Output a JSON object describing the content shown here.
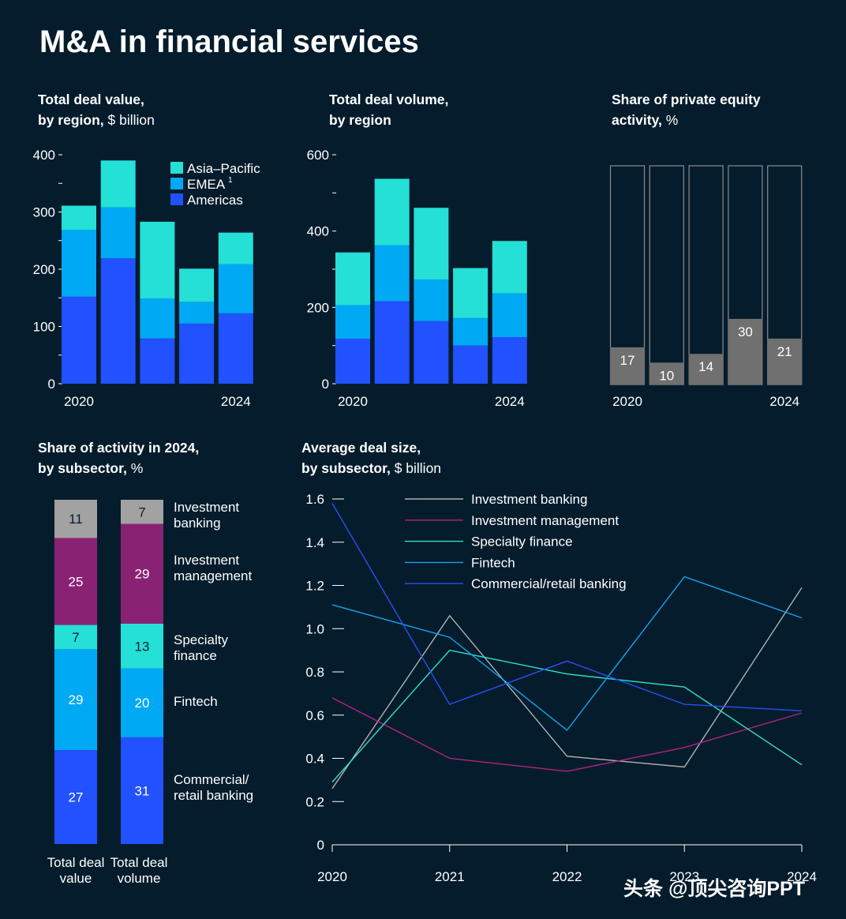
{
  "page": {
    "title": "M&A in financial services",
    "background": "#051c2c",
    "watermark": "头条 @顶尖咨询PPT"
  },
  "colors": {
    "americas": "#2251ff",
    "emea": "#00a9f4",
    "apac": "#25e0d6",
    "pe_fill": "#707070",
    "pe_border": "#8c8c8c",
    "investment_banking": "#a2a2a2",
    "investment_management": "#8a2274",
    "specialty_finance": "#25e0d6",
    "fintech": "#00a9f4",
    "commercial_retail": "#2251ff",
    "line_investment_banking": "#b0b0b0",
    "line_investment_management": "#b0247f",
    "line_specialty_finance": "#2ee0c8",
    "line_fintech": "#15a3f0",
    "line_commercial_retail": "#2c4ff5",
    "axis": "#ffffff"
  },
  "chart_data": [
    {
      "id": "deal_value",
      "type": "bar",
      "stacked": true,
      "title_bold": "Total deal value,",
      "title_bold_2": "by region,",
      "title_light": " $ billion",
      "categories": [
        "2020",
        "2021",
        "2022",
        "2023",
        "2024"
      ],
      "x_tick_labels": [
        "2020",
        "",
        "",
        "",
        "2024"
      ],
      "y_ticks": [
        0,
        100,
        200,
        300,
        400
      ],
      "ylim": [
        0,
        400
      ],
      "legend_position": "top-right",
      "series": [
        {
          "name": "Americas",
          "color_key": "americas",
          "values": [
            152,
            219,
            79,
            105,
            123
          ]
        },
        {
          "name": "EMEA",
          "footnote": "1",
          "color_key": "emea",
          "values": [
            117,
            89,
            70,
            38,
            86
          ]
        },
        {
          "name": "Asia–Pacific",
          "color_key": "apac",
          "values": [
            42,
            82,
            134,
            58,
            55
          ]
        }
      ]
    },
    {
      "id": "deal_volume",
      "type": "bar",
      "stacked": true,
      "title_bold": "Total deal volume,",
      "title_bold_2": "by region",
      "title_light": "",
      "categories": [
        "2020",
        "2021",
        "2022",
        "2023",
        "2024"
      ],
      "x_tick_labels": [
        "2020",
        "",
        "",
        "",
        "2024"
      ],
      "y_ticks": [
        0,
        200,
        400,
        600
      ],
      "ylim": [
        0,
        600
      ],
      "series": [
        {
          "name": "Americas",
          "color_key": "americas",
          "values": [
            118,
            216,
            164,
            100,
            122
          ]
        },
        {
          "name": "EMEA",
          "color_key": "emea",
          "values": [
            88,
            147,
            109,
            72,
            115
          ]
        },
        {
          "name": "Asia–Pacific",
          "color_key": "apac",
          "values": [
            138,
            174,
            188,
            131,
            137
          ]
        }
      ]
    },
    {
      "id": "pe_share",
      "type": "bar",
      "title_bold": "Share of private equity",
      "title_bold_2": "activity,",
      "title_light": " %",
      "categories": [
        "2020",
        "2021",
        "2022",
        "2023",
        "2024"
      ],
      "x_tick_labels": [
        "2020",
        "",
        "",
        "",
        "2024"
      ],
      "ylim": [
        0,
        100
      ],
      "values": [
        17,
        10,
        14,
        30,
        21
      ],
      "value_labels": [
        "17",
        "10",
        "14",
        "30",
        "21"
      ]
    },
    {
      "id": "subsector_share",
      "type": "bar",
      "stacked": true,
      "title_bold": "Share of activity in 2024,",
      "title_bold_2": "by subsector,",
      "title_light": " %",
      "bars": [
        {
          "label_line1": "Total deal",
          "label_line2": "value",
          "values": [
            27,
            29,
            7,
            25,
            11
          ]
        },
        {
          "label_line1": "Total deal",
          "label_line2": "volume",
          "values": [
            31,
            20,
            13,
            29,
            7
          ]
        }
      ],
      "segments": [
        {
          "name": "Commercial/retail banking",
          "line1": "Commercial/",
          "line2": "retail banking",
          "color_key": "commercial_retail"
        },
        {
          "name": "Fintech",
          "line1": "Fintech",
          "line2": "",
          "color_key": "fintech"
        },
        {
          "name": "Specialty finance",
          "line1": "Specialty",
          "line2": "finance",
          "color_key": "specialty_finance",
          "dark_text": true
        },
        {
          "name": "Investment management",
          "line1": "Investment",
          "line2": "management",
          "color_key": "investment_management",
          "emphasis": true
        },
        {
          "name": "Investment banking",
          "line1": "Investment",
          "line2": "banking",
          "color_key": "investment_banking",
          "dark_text": true
        }
      ]
    },
    {
      "id": "avg_deal_size",
      "type": "line",
      "title_bold": "Average deal size,",
      "title_bold_2": "by subsector,",
      "title_light": " $ billion",
      "x": [
        "2020",
        "2021",
        "2022",
        "2023",
        "2024"
      ],
      "y_ticks": [
        "0",
        "0.2",
        "0.4",
        "0.6",
        "0.8",
        "1.0",
        "1.2",
        "1.4",
        "1.6"
      ],
      "ylim": [
        0,
        1.6
      ],
      "legend_position": "top",
      "series": [
        {
          "name": "Investment banking",
          "color_key": "line_investment_banking",
          "values": [
            0.26,
            1.06,
            0.41,
            0.36,
            1.19
          ]
        },
        {
          "name": "Investment management",
          "color_key": "line_investment_management",
          "values": [
            0.68,
            0.4,
            0.34,
            0.45,
            0.61
          ]
        },
        {
          "name": "Specialty finance",
          "color_key": "line_specialty_finance",
          "values": [
            0.29,
            0.9,
            0.79,
            0.73,
            0.37
          ]
        },
        {
          "name": "Fintech",
          "color_key": "line_fintech",
          "values": [
            1.11,
            0.96,
            0.53,
            1.24,
            1.05
          ]
        },
        {
          "name": "Commercial/retail banking",
          "color_key": "line_commercial_retail",
          "values": [
            1.58,
            0.65,
            0.85,
            0.65,
            0.62
          ]
        }
      ]
    }
  ]
}
